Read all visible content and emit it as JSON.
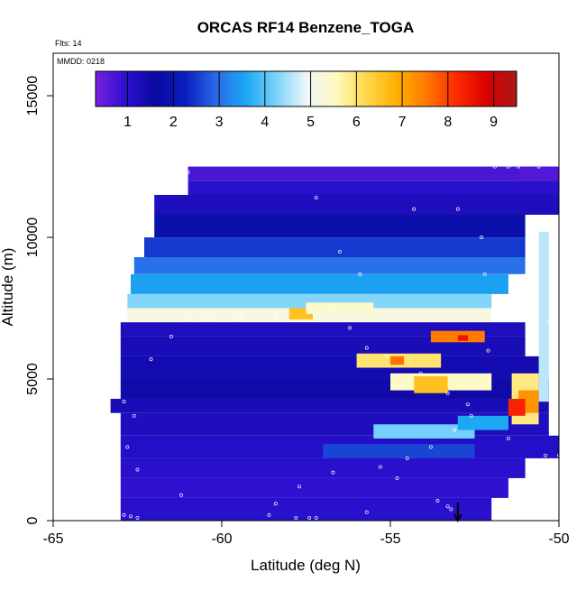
{
  "chart_data": {
    "type": "heatmap",
    "title": "ORCAS RF14 Benzene_TOGA",
    "annotations": {
      "flights": "Flts: 14",
      "date": "MMDD: 0218"
    },
    "xlabel": "Latitude (deg N)",
    "ylabel": "Altitude (m)",
    "xlim": [
      -65,
      -50
    ],
    "ylim": [
      0,
      16500
    ],
    "x_ticks": [
      -65,
      -60,
      -55,
      -50
    ],
    "y_ticks": [
      0,
      5000,
      10000,
      15000
    ],
    "grid": false,
    "colorbar": {
      "placement": "top-inside",
      "range": [
        0.3,
        9.5
      ],
      "ticks": [
        1,
        2,
        3,
        4,
        5,
        6,
        7,
        8,
        9
      ],
      "colors": [
        "#7a1fe0",
        "#2a10d0",
        "#0a0aa0",
        "#0a1ec0",
        "#2a6ae8",
        "#1aa8f4",
        "#7ad2fa",
        "#eef6fa",
        "#fffac0",
        "#ffd84a",
        "#ffb000",
        "#ff7a00",
        "#ff2a00",
        "#d80000",
        "#a81a1a"
      ]
    },
    "bands": [
      {
        "alt": [
          12000,
          12500
        ],
        "lat": [
          -61,
          -50
        ],
        "value": 0.7
      },
      {
        "alt": [
          11500,
          12000
        ],
        "lat": [
          -61,
          -50
        ],
        "value": 1.0
      },
      {
        "alt": [
          10800,
          11500
        ],
        "lat": [
          -62,
          -50
        ],
        "value": 1.2
      },
      {
        "alt": [
          10000,
          10800
        ],
        "lat": [
          -62,
          -51
        ],
        "value": 1.8
      },
      {
        "alt": [
          9300,
          10000
        ],
        "lat": [
          -62.3,
          -51
        ],
        "value": 2.5
      },
      {
        "alt": [
          8700,
          9300
        ],
        "lat": [
          -62.6,
          -51
        ],
        "value": 3.0
      },
      {
        "alt": [
          8000,
          8700
        ],
        "lat": [
          -62.7,
          -51.5
        ],
        "value": 3.5
      },
      {
        "alt": [
          7500,
          8000
        ],
        "lat": [
          -62.8,
          -52
        ],
        "value": 4.3
      },
      {
        "alt": [
          7000,
          7500
        ],
        "lat": [
          -62.8,
          -52
        ],
        "value": 5.2
      },
      {
        "alt": [
          6500,
          7000
        ],
        "lat": [
          -63,
          -51
        ],
        "value": 1.2
      },
      {
        "alt": [
          5800,
          6500
        ],
        "lat": [
          -63,
          -51
        ],
        "value": 1.3
      },
      {
        "alt": [
          5000,
          5800
        ],
        "lat": [
          -63,
          -50.5
        ],
        "value": 1.4
      },
      {
        "alt": [
          4300,
          5000
        ],
        "lat": [
          -63,
          -50.3
        ],
        "value": 1.5
      },
      {
        "alt": [
          3800,
          4300
        ],
        "lat": [
          -63.3,
          -50.3
        ],
        "value": 1.3
      },
      {
        "alt": [
          3000,
          3800
        ],
        "lat": [
          -63,
          -50.3
        ],
        "value": 1.2
      },
      {
        "alt": [
          2200,
          3000
        ],
        "lat": [
          -63,
          -50
        ],
        "value": 1.1
      },
      {
        "alt": [
          1500,
          2200
        ],
        "lat": [
          -63,
          -51
        ],
        "value": 1.0
      },
      {
        "alt": [
          800,
          1500
        ],
        "lat": [
          -63,
          -51.5
        ],
        "value": 0.9
      },
      {
        "alt": [
          0,
          800
        ],
        "lat": [
          -63,
          -52
        ],
        "value": 1.0
      }
    ],
    "features": [
      {
        "alt": [
          7100,
          7500
        ],
        "lat": [
          -58,
          -57.3
        ],
        "value": 6.6
      },
      {
        "alt": [
          7300,
          7700
        ],
        "lat": [
          -57.5,
          -55.5
        ],
        "value": 5.4
      },
      {
        "alt": [
          6300,
          6700
        ],
        "lat": [
          -53.8,
          -52.2
        ],
        "value": 7.5
      },
      {
        "alt": [
          6350,
          6550
        ],
        "lat": [
          -53,
          -52.7
        ],
        "value": 8.5
      },
      {
        "alt": [
          5400,
          5900
        ],
        "lat": [
          -56,
          -53.5
        ],
        "value": 6.0
      },
      {
        "alt": [
          5500,
          5800
        ],
        "lat": [
          -55,
          -54.6
        ],
        "value": 7.6
      },
      {
        "alt": [
          4600,
          5200
        ],
        "lat": [
          -55,
          -52
        ],
        "value": 5.5
      },
      {
        "alt": [
          4500,
          5100
        ],
        "lat": [
          -54.3,
          -53.3
        ],
        "value": 6.6
      },
      {
        "alt": [
          3400,
          5200
        ],
        "lat": [
          -51.4,
          -50.6
        ],
        "value": 5.9
      },
      {
        "alt": [
          3800,
          4600
        ],
        "lat": [
          -51.2,
          -50.6
        ],
        "value": 7.2
      },
      {
        "alt": [
          3700,
          4300
        ],
        "lat": [
          -51.5,
          -51.0
        ],
        "value": 8.3
      },
      {
        "alt": [
          4200,
          10200
        ],
        "lat": [
          -50.6,
          -50.3
        ],
        "value": 4.6
      },
      {
        "alt": [
          2900,
          3400
        ],
        "lat": [
          -55.5,
          -52.5
        ],
        "value": 4.2
      },
      {
        "alt": [
          2200,
          2700
        ],
        "lat": [
          -57,
          -52.5
        ],
        "value": 2.6
      },
      {
        "alt": [
          3200,
          3700
        ],
        "lat": [
          -53,
          -51.5
        ],
        "value": 3.6
      },
      {
        "alt": [
          12000,
          12500
        ],
        "lat": [
          -51.2,
          -50
        ],
        "value": 0.6
      }
    ],
    "flight_track": [
      [
        -62.9,
        200
      ],
      [
        -62.7,
        150
      ],
      [
        -62.5,
        100
      ],
      [
        -61.2,
        900
      ],
      [
        -62.5,
        1800
      ],
      [
        -62.8,
        2600
      ],
      [
        -62.6,
        3700
      ],
      [
        -62.9,
        4200
      ],
      [
        -62.1,
        5700
      ],
      [
        -61.5,
        6500
      ],
      [
        -61.1,
        7100
      ],
      [
        -60.9,
        7100
      ],
      [
        -60.6,
        7100
      ],
      [
        -60.3,
        7100
      ],
      [
        -59.6,
        7100
      ],
      [
        -59.4,
        7200
      ],
      [
        -58.4,
        7200
      ],
      [
        -56.7,
        7400
      ],
      [
        -56.2,
        6800
      ],
      [
        -55.7,
        6100
      ],
      [
        -55.1,
        5800
      ],
      [
        -54.1,
        5200
      ],
      [
        -53.3,
        4500
      ],
      [
        -52.6,
        3700
      ],
      [
        -51.5,
        2900
      ],
      [
        -50.4,
        2300
      ],
      [
        -54.5,
        2200
      ],
      [
        -55.3,
        1900
      ],
      [
        -56.7,
        1700
      ],
      [
        -57.7,
        1200
      ],
      [
        -58.4,
        600
      ],
      [
        -58.6,
        200
      ],
      [
        -57.8,
        100
      ],
      [
        -57.4,
        100
      ],
      [
        -57.2,
        100
      ],
      [
        -55.7,
        300
      ],
      [
        -54.8,
        1500
      ],
      [
        -53.8,
        2600
      ],
      [
        -53.1,
        3200
      ],
      [
        -52.7,
        4100
      ],
      [
        -52.1,
        6000
      ],
      [
        -51.8,
        7600
      ],
      [
        -52.2,
        8700
      ],
      [
        -52.3,
        10000
      ],
      [
        -53.0,
        11000
      ],
      [
        -54.3,
        11000
      ],
      [
        -55.9,
        8700
      ],
      [
        -56.5,
        9500
      ],
      [
        -57.2,
        11400
      ],
      [
        -61.0,
        12300
      ],
      [
        -51.9,
        12500
      ],
      [
        -51.5,
        12500
      ],
      [
        -51.2,
        12500
      ],
      [
        -50.6,
        12500
      ],
      [
        -50.1,
        10100
      ],
      [
        -50.3,
        7000
      ],
      [
        -50.2,
        5000
      ],
      [
        -50.0,
        2300
      ],
      [
        -53.3,
        500
      ],
      [
        -53.2,
        400
      ],
      [
        -53.6,
        700
      ]
    ],
    "marker": {
      "lat": -53.0,
      "alt": 0,
      "symbol": "arrow-down"
    }
  }
}
